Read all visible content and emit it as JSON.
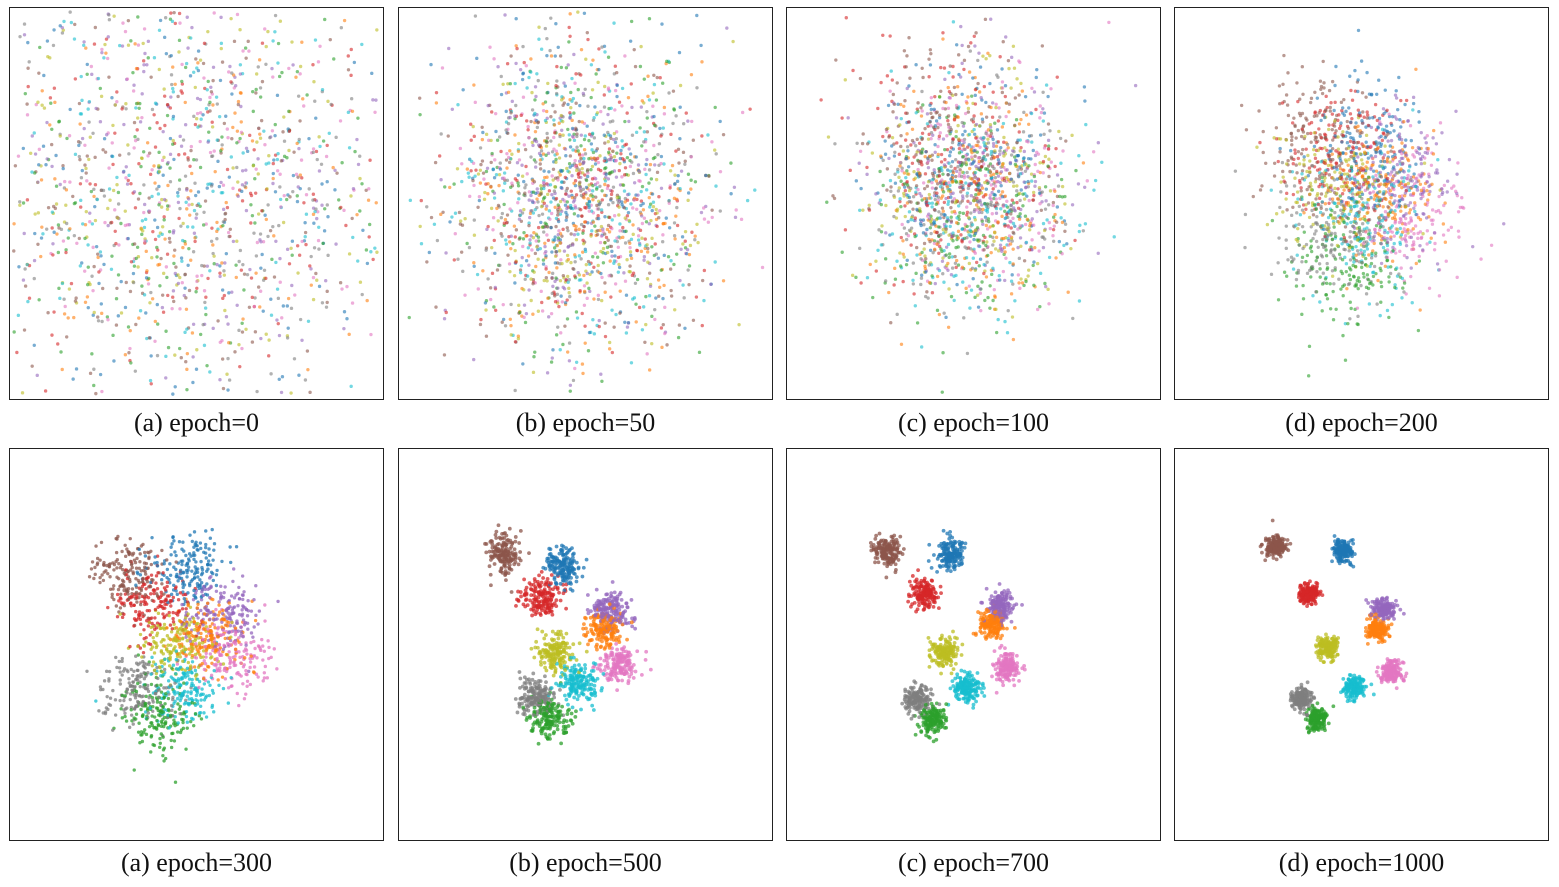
{
  "figure": {
    "panels": [
      {
        "caption": "(a) epoch=0"
      },
      {
        "caption": "(b) epoch=50"
      },
      {
        "caption": "(c) epoch=100"
      },
      {
        "caption": "(d) epoch=200"
      },
      {
        "caption": "(a) epoch=300"
      },
      {
        "caption": "(b) epoch=500"
      },
      {
        "caption": "(c) epoch=700"
      },
      {
        "caption": "(d) epoch=1000"
      }
    ]
  },
  "chart_data": [
    {
      "type": "scatter",
      "title": "(a) epoch=0",
      "epoch": 0,
      "num_classes": 10,
      "axes_ticks": false,
      "grid": false,
      "class_colors": [
        "#1f77b4",
        "#ff7f0e",
        "#2ca02c",
        "#d62728",
        "#9467bd",
        "#8c564b",
        "#e377c2",
        "#7f7f7f",
        "#bcbd22",
        "#17becf"
      ],
      "description_spread": 0.95,
      "clusters": [
        {
          "class": 5,
          "center": [
            0.45,
            0.46
          ]
        },
        {
          "class": 0,
          "center": [
            0.46,
            0.45
          ]
        },
        {
          "class": 3,
          "center": [
            0.45,
            0.46
          ]
        },
        {
          "class": 4,
          "center": [
            0.46,
            0.46
          ]
        },
        {
          "class": 1,
          "center": [
            0.45,
            0.45
          ]
        },
        {
          "class": 8,
          "center": [
            0.46,
            0.46
          ]
        },
        {
          "class": 6,
          "center": [
            0.45,
            0.46
          ]
        },
        {
          "class": 9,
          "center": [
            0.46,
            0.45
          ]
        },
        {
          "class": 7,
          "center": [
            0.45,
            0.46
          ]
        },
        {
          "class": 2,
          "center": [
            0.46,
            0.46
          ]
        }
      ],
      "cluster_std": [
        0.3,
        0.3
      ]
    },
    {
      "type": "scatter",
      "title": "(b) epoch=50",
      "epoch": 50,
      "num_classes": 10,
      "axes_ticks": false,
      "grid": false,
      "class_colors": [
        "#1f77b4",
        "#ff7f0e",
        "#2ca02c",
        "#d62728",
        "#9467bd",
        "#8c564b",
        "#e377c2",
        "#7f7f7f",
        "#bcbd22",
        "#17becf"
      ],
      "clusters": [
        {
          "class": 5,
          "center": [
            0.48,
            0.48
          ]
        },
        {
          "class": 0,
          "center": [
            0.49,
            0.48
          ]
        },
        {
          "class": 3,
          "center": [
            0.48,
            0.48
          ]
        },
        {
          "class": 4,
          "center": [
            0.49,
            0.48
          ]
        },
        {
          "class": 1,
          "center": [
            0.48,
            0.48
          ]
        },
        {
          "class": 8,
          "center": [
            0.49,
            0.48
          ]
        },
        {
          "class": 6,
          "center": [
            0.48,
            0.48
          ]
        },
        {
          "class": 9,
          "center": [
            0.49,
            0.48
          ]
        },
        {
          "class": 7,
          "center": [
            0.48,
            0.48
          ]
        },
        {
          "class": 2,
          "center": [
            0.49,
            0.48
          ]
        }
      ],
      "cluster_std": [
        0.17,
        0.19
      ]
    },
    {
      "type": "scatter",
      "title": "(c) epoch=100",
      "epoch": 100,
      "num_classes": 10,
      "axes_ticks": false,
      "grid": false,
      "class_colors": [
        "#1f77b4",
        "#ff7f0e",
        "#2ca02c",
        "#d62728",
        "#9467bd",
        "#8c564b",
        "#e377c2",
        "#7f7f7f",
        "#bcbd22",
        "#17becf"
      ],
      "clusters": [
        {
          "class": 5,
          "center": [
            0.44,
            0.38
          ]
        },
        {
          "class": 0,
          "center": [
            0.5,
            0.4
          ]
        },
        {
          "class": 3,
          "center": [
            0.45,
            0.4
          ]
        },
        {
          "class": 4,
          "center": [
            0.52,
            0.44
          ]
        },
        {
          "class": 1,
          "center": [
            0.5,
            0.46
          ]
        },
        {
          "class": 8,
          "center": [
            0.47,
            0.46
          ]
        },
        {
          "class": 6,
          "center": [
            0.53,
            0.46
          ]
        },
        {
          "class": 9,
          "center": [
            0.49,
            0.5
          ]
        },
        {
          "class": 7,
          "center": [
            0.46,
            0.5
          ]
        },
        {
          "class": 2,
          "center": [
            0.47,
            0.52
          ]
        }
      ],
      "cluster_std": [
        0.13,
        0.14
      ]
    },
    {
      "type": "scatter",
      "title": "(d) epoch=200",
      "epoch": 200,
      "num_classes": 10,
      "axes_ticks": false,
      "grid": false,
      "class_colors": [
        "#1f77b4",
        "#ff7f0e",
        "#2ca02c",
        "#d62728",
        "#9467bd",
        "#8c564b",
        "#e377c2",
        "#7f7f7f",
        "#bcbd22",
        "#17becf"
      ],
      "clusters": [
        {
          "class": 5,
          "center": [
            0.38,
            0.34
          ]
        },
        {
          "class": 0,
          "center": [
            0.52,
            0.34
          ]
        },
        {
          "class": 3,
          "center": [
            0.44,
            0.38
          ]
        },
        {
          "class": 4,
          "center": [
            0.6,
            0.44
          ]
        },
        {
          "class": 1,
          "center": [
            0.56,
            0.48
          ]
        },
        {
          "class": 8,
          "center": [
            0.46,
            0.46
          ]
        },
        {
          "class": 6,
          "center": [
            0.62,
            0.52
          ]
        },
        {
          "class": 9,
          "center": [
            0.5,
            0.56
          ]
        },
        {
          "class": 7,
          "center": [
            0.42,
            0.58
          ]
        },
        {
          "class": 2,
          "center": [
            0.46,
            0.64
          ]
        }
      ],
      "cluster_std": [
        0.08,
        0.09
      ]
    },
    {
      "type": "scatter",
      "title": "(a) epoch=300",
      "epoch": 300,
      "num_classes": 10,
      "axes_ticks": false,
      "grid": false,
      "class_colors": [
        "#1f77b4",
        "#ff7f0e",
        "#2ca02c",
        "#d62728",
        "#9467bd",
        "#8c564b",
        "#e377c2",
        "#7f7f7f",
        "#bcbd22",
        "#17becf"
      ],
      "clusters": [
        {
          "class": 5,
          "center": [
            0.32,
            0.32
          ]
        },
        {
          "class": 0,
          "center": [
            0.47,
            0.31
          ]
        },
        {
          "class": 3,
          "center": [
            0.39,
            0.4
          ]
        },
        {
          "class": 4,
          "center": [
            0.57,
            0.42
          ]
        },
        {
          "class": 1,
          "center": [
            0.53,
            0.48
          ]
        },
        {
          "class": 8,
          "center": [
            0.45,
            0.5
          ]
        },
        {
          "class": 6,
          "center": [
            0.59,
            0.53
          ]
        },
        {
          "class": 9,
          "center": [
            0.47,
            0.61
          ]
        },
        {
          "class": 7,
          "center": [
            0.34,
            0.62
          ]
        },
        {
          "class": 2,
          "center": [
            0.4,
            0.68
          ]
        }
      ],
      "cluster_std": [
        0.05,
        0.045
      ]
    },
    {
      "type": "scatter",
      "title": "(b) epoch=500",
      "epoch": 500,
      "num_classes": 10,
      "axes_ticks": false,
      "grid": false,
      "class_colors": [
        "#1f77b4",
        "#ff7f0e",
        "#2ca02c",
        "#d62728",
        "#9467bd",
        "#8c564b",
        "#e377c2",
        "#7f7f7f",
        "#bcbd22",
        "#17becf"
      ],
      "clusters": [
        {
          "class": 5,
          "center": [
            0.28,
            0.27
          ]
        },
        {
          "class": 0,
          "center": [
            0.44,
            0.3
          ]
        },
        {
          "class": 3,
          "center": [
            0.38,
            0.38
          ]
        },
        {
          "class": 4,
          "center": [
            0.57,
            0.41
          ]
        },
        {
          "class": 1,
          "center": [
            0.55,
            0.46
          ]
        },
        {
          "class": 8,
          "center": [
            0.42,
            0.52
          ]
        },
        {
          "class": 6,
          "center": [
            0.59,
            0.55
          ]
        },
        {
          "class": 9,
          "center": [
            0.48,
            0.6
          ]
        },
        {
          "class": 7,
          "center": [
            0.37,
            0.63
          ]
        },
        {
          "class": 2,
          "center": [
            0.4,
            0.69
          ]
        }
      ],
      "cluster_std": [
        0.025,
        0.025
      ]
    },
    {
      "type": "scatter",
      "title": "(c) epoch=700",
      "epoch": 700,
      "num_classes": 10,
      "axes_ticks": false,
      "grid": false,
      "class_colors": [
        "#1f77b4",
        "#ff7f0e",
        "#2ca02c",
        "#d62728",
        "#9467bd",
        "#8c564b",
        "#e377c2",
        "#7f7f7f",
        "#bcbd22",
        "#17becf"
      ],
      "clusters": [
        {
          "class": 5,
          "center": [
            0.27,
            0.26
          ]
        },
        {
          "class": 0,
          "center": [
            0.44,
            0.27
          ]
        },
        {
          "class": 3,
          "center": [
            0.37,
            0.37
          ]
        },
        {
          "class": 4,
          "center": [
            0.57,
            0.4
          ]
        },
        {
          "class": 1,
          "center": [
            0.55,
            0.45
          ]
        },
        {
          "class": 8,
          "center": [
            0.42,
            0.52
          ]
        },
        {
          "class": 6,
          "center": [
            0.59,
            0.56
          ]
        },
        {
          "class": 9,
          "center": [
            0.48,
            0.61
          ]
        },
        {
          "class": 7,
          "center": [
            0.35,
            0.64
          ]
        },
        {
          "class": 2,
          "center": [
            0.39,
            0.69
          ]
        }
      ],
      "cluster_std": [
        0.018,
        0.018
      ]
    },
    {
      "type": "scatter",
      "title": "(d) epoch=1000",
      "epoch": 1000,
      "num_classes": 10,
      "axes_ticks": false,
      "grid": false,
      "class_colors": [
        "#1f77b4",
        "#ff7f0e",
        "#2ca02c",
        "#d62728",
        "#9467bd",
        "#8c564b",
        "#e377c2",
        "#7f7f7f",
        "#bcbd22",
        "#17becf"
      ],
      "clusters": [
        {
          "class": 5,
          "center": [
            0.27,
            0.25
          ]
        },
        {
          "class": 0,
          "center": [
            0.45,
            0.26
          ]
        },
        {
          "class": 3,
          "center": [
            0.36,
            0.37
          ]
        },
        {
          "class": 4,
          "center": [
            0.56,
            0.41
          ]
        },
        {
          "class": 1,
          "center": [
            0.54,
            0.46
          ]
        },
        {
          "class": 8,
          "center": [
            0.41,
            0.51
          ]
        },
        {
          "class": 6,
          "center": [
            0.58,
            0.57
          ]
        },
        {
          "class": 9,
          "center": [
            0.48,
            0.61
          ]
        },
        {
          "class": 7,
          "center": [
            0.34,
            0.64
          ]
        },
        {
          "class": 2,
          "center": [
            0.38,
            0.69
          ]
        }
      ],
      "cluster_std": [
        0.014,
        0.014
      ]
    }
  ]
}
